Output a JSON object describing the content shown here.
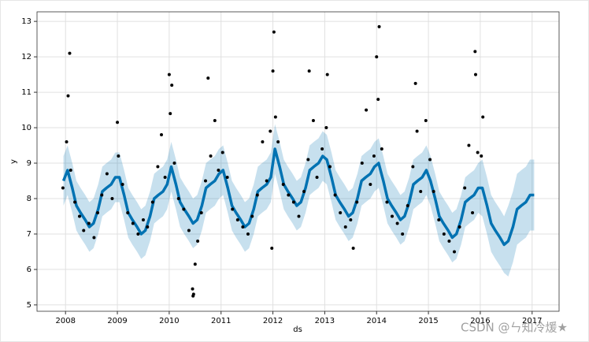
{
  "chart_data": {
    "type": "forecast",
    "xlabel": "ds",
    "ylabel": "y",
    "annotation": "CSDN @ㄣ知冷煖★",
    "xlim": [
      2007.45,
      2017.52
    ],
    "ylim": [
      4.82,
      13.27
    ],
    "xticks": [
      2008,
      2009,
      2010,
      2011,
      2012,
      2013,
      2014,
      2015,
      2016,
      2017
    ],
    "yticks": [
      5,
      6,
      7,
      8,
      9,
      10,
      11,
      12,
      13
    ],
    "grid": true,
    "line_color": "#0072B2",
    "band_color": "#0072B2",
    "point_color": "#000000",
    "x": [
      2007.96,
      2008.04,
      2008.13,
      2008.21,
      2008.29,
      2008.38,
      2008.46,
      2008.54,
      2008.63,
      2008.71,
      2008.79,
      2008.88,
      2008.96,
      2009.04,
      2009.13,
      2009.21,
      2009.29,
      2009.38,
      2009.46,
      2009.54,
      2009.63,
      2009.71,
      2009.79,
      2009.88,
      2009.96,
      2010.04,
      2010.13,
      2010.21,
      2010.29,
      2010.38,
      2010.46,
      2010.54,
      2010.63,
      2010.71,
      2010.79,
      2010.88,
      2010.96,
      2011.04,
      2011.13,
      2011.21,
      2011.29,
      2011.38,
      2011.46,
      2011.54,
      2011.63,
      2011.71,
      2011.79,
      2011.88,
      2011.96,
      2012.04,
      2012.13,
      2012.21,
      2012.29,
      2012.38,
      2012.46,
      2012.54,
      2012.63,
      2012.71,
      2012.79,
      2012.88,
      2012.96,
      2013.04,
      2013.13,
      2013.21,
      2013.29,
      2013.38,
      2013.46,
      2013.54,
      2013.63,
      2013.71,
      2013.79,
      2013.88,
      2013.96,
      2014.04,
      2014.13,
      2014.21,
      2014.29,
      2014.38,
      2014.46,
      2014.54,
      2014.63,
      2014.71,
      2014.79,
      2014.88,
      2014.96,
      2015.04,
      2015.13,
      2015.21,
      2015.29,
      2015.38,
      2015.46,
      2015.54,
      2015.63,
      2015.71,
      2015.79,
      2015.88,
      2015.96,
      2016.04,
      2016.13,
      2016.21,
      2016.29,
      2016.38,
      2016.46,
      2016.54,
      2016.63,
      2016.71,
      2016.79,
      2016.88,
      2016.96,
      2017.04
    ],
    "values": [
      8.5,
      8.8,
      8.3,
      7.8,
      7.6,
      7.4,
      7.2,
      7.3,
      7.7,
      8.2,
      8.3,
      8.4,
      8.6,
      8.6,
      8.1,
      7.6,
      7.4,
      7.2,
      7.0,
      7.1,
      7.5,
      8.0,
      8.1,
      8.2,
      8.4,
      8.9,
      8.4,
      7.9,
      7.7,
      7.5,
      7.3,
      7.4,
      7.8,
      8.3,
      8.4,
      8.5,
      8.7,
      8.8,
      8.3,
      7.8,
      7.6,
      7.4,
      7.2,
      7.3,
      7.7,
      8.2,
      8.3,
      8.4,
      8.6,
      9.4,
      8.9,
      8.4,
      8.2,
      8.0,
      7.8,
      7.9,
      8.3,
      8.8,
      8.9,
      9.0,
      9.2,
      9.1,
      8.6,
      8.1,
      7.9,
      7.7,
      7.5,
      7.6,
      8.0,
      8.5,
      8.6,
      8.7,
      8.9,
      9.0,
      8.5,
      8.0,
      7.8,
      7.6,
      7.4,
      7.5,
      7.9,
      8.4,
      8.5,
      8.6,
      8.8,
      8.5,
      8.0,
      7.5,
      7.3,
      7.1,
      6.9,
      7.0,
      7.4,
      7.9,
      8.0,
      8.1,
      8.3,
      8.3,
      7.8,
      7.3,
      7.1,
      6.9,
      6.7,
      6.8,
      7.2,
      7.7,
      7.8,
      7.9,
      8.1,
      8.1
    ],
    "lower": [
      7.8,
      8.1,
      7.6,
      7.1,
      6.9,
      6.7,
      6.5,
      6.6,
      7.0,
      7.5,
      7.6,
      7.7,
      7.9,
      7.9,
      7.4,
      6.9,
      6.7,
      6.5,
      6.3,
      6.4,
      6.8,
      7.3,
      7.4,
      7.5,
      7.7,
      8.2,
      7.7,
      7.2,
      7.0,
      6.8,
      6.6,
      6.7,
      7.1,
      7.6,
      7.7,
      7.8,
      8.0,
      8.1,
      7.6,
      7.1,
      6.9,
      6.7,
      6.5,
      6.6,
      7.0,
      7.5,
      7.6,
      7.7,
      7.9,
      8.7,
      8.2,
      7.7,
      7.5,
      7.3,
      7.1,
      7.2,
      7.6,
      8.1,
      8.2,
      8.3,
      8.5,
      8.4,
      7.9,
      7.4,
      7.2,
      7.0,
      6.8,
      6.9,
      7.3,
      7.8,
      7.9,
      8.0,
      8.2,
      8.3,
      7.8,
      7.3,
      7.1,
      6.9,
      6.7,
      6.8,
      7.2,
      7.7,
      7.8,
      7.9,
      8.1,
      7.8,
      7.3,
      6.8,
      6.6,
      6.4,
      6.2,
      6.3,
      6.7,
      7.2,
      7.3,
      7.4,
      7.6,
      7.5,
      7.0,
      6.5,
      6.3,
      6.1,
      5.9,
      5.8,
      6.2,
      6.7,
      6.8,
      6.9,
      7.1,
      7.1
    ],
    "upper": [
      9.2,
      9.5,
      9.0,
      8.5,
      8.3,
      8.1,
      7.9,
      8.0,
      8.4,
      8.9,
      9.0,
      9.1,
      9.3,
      9.3,
      8.8,
      8.3,
      8.1,
      7.9,
      7.7,
      7.8,
      8.2,
      8.7,
      8.8,
      8.9,
      9.1,
      9.6,
      9.1,
      8.6,
      8.4,
      8.2,
      8.0,
      8.1,
      8.5,
      9.0,
      9.1,
      9.2,
      9.4,
      9.5,
      9.0,
      8.5,
      8.3,
      8.1,
      7.9,
      8.0,
      8.4,
      8.9,
      9.0,
      9.1,
      9.3,
      10.1,
      9.6,
      9.1,
      8.9,
      8.7,
      8.5,
      8.6,
      9.0,
      9.5,
      9.6,
      9.7,
      9.9,
      9.8,
      9.3,
      8.8,
      8.6,
      8.4,
      8.2,
      8.3,
      8.7,
      9.2,
      9.3,
      9.4,
      9.6,
      9.7,
      9.2,
      8.7,
      8.5,
      8.3,
      8.1,
      8.2,
      8.6,
      9.1,
      9.2,
      9.3,
      9.5,
      9.2,
      8.7,
      8.2,
      8.0,
      7.8,
      7.6,
      7.7,
      8.1,
      8.6,
      8.7,
      8.8,
      9.0,
      9.1,
      8.6,
      8.1,
      7.9,
      7.7,
      7.5,
      7.8,
      8.2,
      8.7,
      8.8,
      8.9,
      9.1,
      9.1
    ],
    "points": {
      "x": [
        2007.95,
        2008.02,
        2008.1,
        2008.18,
        2008.27,
        2008.35,
        2008.45,
        2008.55,
        2008.62,
        2008.7,
        2008.8,
        2008.9,
        2009.02,
        2009.1,
        2009.2,
        2009.3,
        2009.4,
        2009.5,
        2009.58,
        2009.68,
        2009.78,
        2009.85,
        2009.92,
        2010.02,
        2010.1,
        2010.18,
        2010.28,
        2010.38,
        2010.55,
        2010.62,
        2010.7,
        2010.8,
        2010.88,
        2010.95,
        2011.03,
        2011.12,
        2011.22,
        2011.32,
        2011.42,
        2011.52,
        2011.6,
        2011.7,
        2011.8,
        2011.88,
        2011.95,
        2012.05,
        2012.1,
        2012.2,
        2012.3,
        2012.4,
        2012.5,
        2012.6,
        2012.68,
        2012.78,
        2012.85,
        2012.95,
        2013.03,
        2013.1,
        2013.2,
        2013.3,
        2013.4,
        2013.5,
        2013.62,
        2013.72,
        2013.8,
        2013.88,
        2013.95,
        2014.03,
        2014.1,
        2014.2,
        2014.3,
        2014.4,
        2014.5,
        2014.6,
        2014.7,
        2014.78,
        2014.85,
        2014.95,
        2015.03,
        2015.1,
        2015.2,
        2015.3,
        2015.4,
        2015.5,
        2015.6,
        2015.7,
        2015.78,
        2015.85,
        2015.95,
        2016.02,
        2008.08,
        2008.05,
        2010.0,
        2010.05,
        2010.75,
        2012.02,
        2012.0,
        2012.7,
        2013.05,
        2014.05,
        2014.0,
        2015.9,
        2015.91,
        2014.75,
        2010.45,
        2010.47,
        2010.46,
        2010.5,
        2011.98,
        2013.55,
        2009.0,
        2016.05
      ],
      "y": [
        8.3,
        9.6,
        8.8,
        7.9,
        7.5,
        7.1,
        7.3,
        6.9,
        7.6,
        8.1,
        8.7,
        8.0,
        9.2,
        8.4,
        7.6,
        7.3,
        7.0,
        7.4,
        7.2,
        7.9,
        8.9,
        9.8,
        8.6,
        10.4,
        9.0,
        8.0,
        7.7,
        7.1,
        6.8,
        7.6,
        8.5,
        9.2,
        10.2,
        8.8,
        9.3,
        8.6,
        7.7,
        7.4,
        7.2,
        7.0,
        7.5,
        8.1,
        9.6,
        8.5,
        9.9,
        10.3,
        9.6,
        8.4,
        8.1,
        7.9,
        7.5,
        8.2,
        9.1,
        10.2,
        8.6,
        9.4,
        10.0,
        8.9,
        8.1,
        7.6,
        7.2,
        7.4,
        7.9,
        9.0,
        10.5,
        8.4,
        9.2,
        10.8,
        9.4,
        7.9,
        7.5,
        7.3,
        7.0,
        7.8,
        8.9,
        9.9,
        8.2,
        10.2,
        9.1,
        8.2,
        7.4,
        7.0,
        6.8,
        6.5,
        7.2,
        8.3,
        9.5,
        7.6,
        9.3,
        9.2,
        12.1,
        10.9,
        11.5,
        11.2,
        11.4,
        12.7,
        11.6,
        11.6,
        11.5,
        12.85,
        12.0,
        12.15,
        11.5,
        11.25,
        5.45,
        5.3,
        5.25,
        6.15,
        6.6,
        6.6,
        10.15,
        10.3
      ]
    }
  }
}
